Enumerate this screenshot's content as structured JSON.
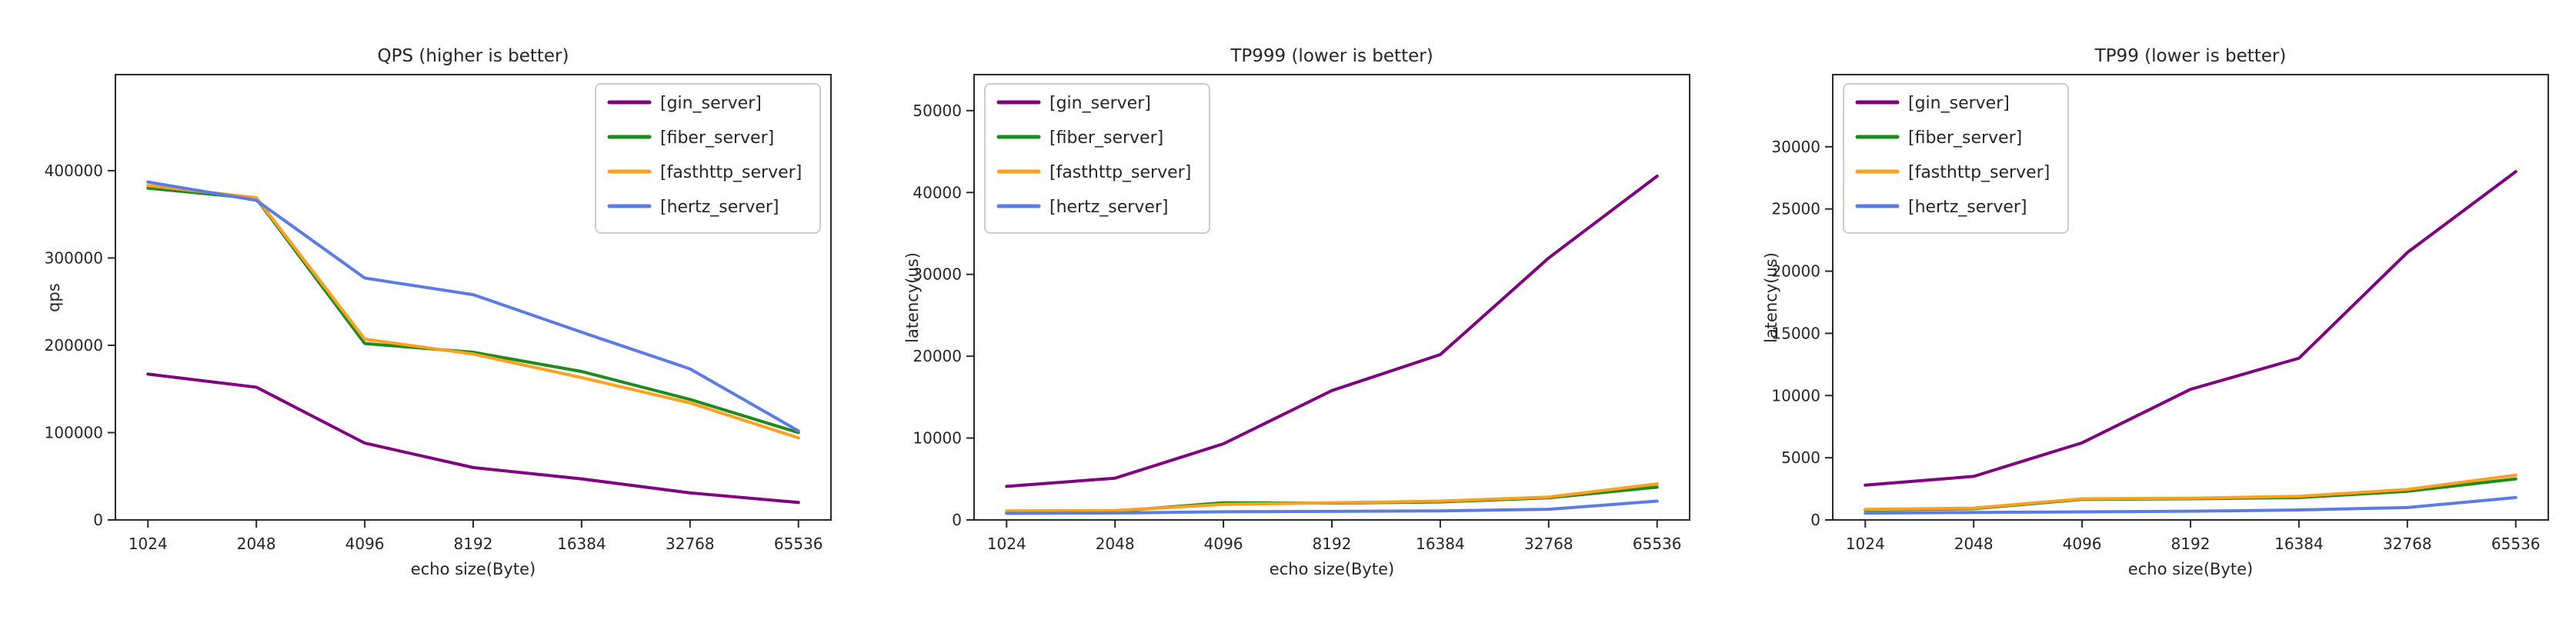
{
  "figure": {
    "background": "#ffffff",
    "axis_color": "#2a2a2a",
    "legend_border_color": "#cccccc",
    "legend_background": "#ffffff"
  },
  "chart_data": [
    {
      "type": "line",
      "title": "QPS (higher is better)",
      "xlabel": "echo size(Byte)",
      "ylabel": "qps",
      "categories": [
        "1024",
        "2048",
        "4096",
        "8192",
        "16384",
        "32768",
        "65536"
      ],
      "yticks": [
        0,
        100000,
        200000,
        300000,
        400000
      ],
      "ylim": [
        0,
        510000
      ],
      "grid": false,
      "legend_position": "top-right",
      "series": [
        {
          "name": "[gin_server]",
          "color": "#800080",
          "values": [
            167000,
            152000,
            88000,
            60000,
            47000,
            31000,
            20000
          ]
        },
        {
          "name": "[fiber_server]",
          "color": "#1f8b1f",
          "values": [
            380000,
            368000,
            202000,
            192000,
            170000,
            138000,
            100000
          ]
        },
        {
          "name": "[fasthttp_server]",
          "color": "#ffa01e",
          "values": [
            383000,
            369000,
            207000,
            190000,
            163000,
            134000,
            94000
          ]
        },
        {
          "name": "[hertz_server]",
          "color": "#5b7ce6",
          "values": [
            387000,
            366000,
            277000,
            258000,
            215000,
            173000,
            102000
          ]
        }
      ]
    },
    {
      "type": "line",
      "title": "TP999 (lower is better)",
      "xlabel": "echo size(Byte)",
      "ylabel": "latency(us)",
      "categories": [
        "1024",
        "2048",
        "4096",
        "8192",
        "16384",
        "32768",
        "65536"
      ],
      "yticks": [
        0,
        10000,
        20000,
        30000,
        40000,
        50000
      ],
      "ylim": [
        0,
        54400
      ],
      "grid": false,
      "legend_position": "top-left",
      "series": [
        {
          "name": "[gin_server]",
          "color": "#800080",
          "values": [
            4100,
            5100,
            9300,
            15800,
            20200,
            32000,
            42000
          ]
        },
        {
          "name": "[fiber_server]",
          "color": "#1f8b1f",
          "values": [
            1000,
            1050,
            2100,
            2050,
            2200,
            2700,
            4000
          ]
        },
        {
          "name": "[fasthttp_server]",
          "color": "#ffa01e",
          "values": [
            1100,
            1150,
            1900,
            2100,
            2300,
            2800,
            4400
          ]
        },
        {
          "name": "[hertz_server]",
          "color": "#5b7ce6",
          "values": [
            800,
            850,
            1000,
            1050,
            1100,
            1300,
            2300
          ]
        }
      ]
    },
    {
      "type": "line",
      "title": "TP99 (lower is better)",
      "xlabel": "echo size(Byte)",
      "ylabel": "latency(us)",
      "categories": [
        "1024",
        "2048",
        "4096",
        "8192",
        "16384",
        "32768",
        "65536"
      ],
      "yticks": [
        0,
        5000,
        10000,
        15000,
        20000,
        25000,
        30000
      ],
      "ylim": [
        0,
        35800
      ],
      "grid": false,
      "legend_position": "top-left",
      "series": [
        {
          "name": "[gin_server]",
          "color": "#800080",
          "values": [
            2800,
            3500,
            6200,
            10500,
            13000,
            21500,
            28000
          ]
        },
        {
          "name": "[fiber_server]",
          "color": "#1f8b1f",
          "values": [
            800,
            900,
            1650,
            1700,
            1800,
            2300,
            3300
          ]
        },
        {
          "name": "[fasthttp_server]",
          "color": "#ffa01e",
          "values": [
            850,
            950,
            1700,
            1750,
            1900,
            2450,
            3600
          ]
        },
        {
          "name": "[hertz_server]",
          "color": "#5b7ce6",
          "values": [
            550,
            600,
            650,
            700,
            800,
            1000,
            1800
          ]
        }
      ]
    }
  ]
}
